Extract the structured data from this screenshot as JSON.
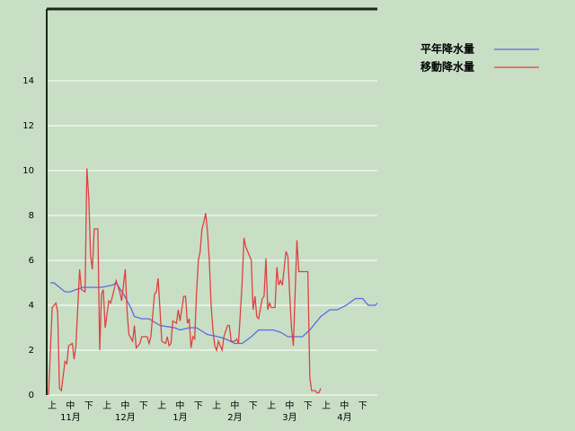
{
  "chart_data": {
    "type": "line",
    "xlim": [
      0,
      181
    ],
    "ylim": [
      0,
      17.2
    ],
    "yticks": [
      0,
      2,
      4,
      6,
      8,
      10,
      12,
      14
    ],
    "grid": true,
    "legend": "top-right",
    "xticks": [
      {
        "value": 3,
        "label": "上"
      },
      {
        "value": 13,
        "label": "中"
      },
      {
        "value": 23,
        "label": "下"
      },
      {
        "value": 33,
        "label": "上"
      },
      {
        "value": 43,
        "label": "中"
      },
      {
        "value": 53,
        "label": "下"
      },
      {
        "value": 63,
        "label": "上"
      },
      {
        "value": 73,
        "label": "中"
      },
      {
        "value": 83,
        "label": "下"
      },
      {
        "value": 93,
        "label": "上"
      },
      {
        "value": 103,
        "label": "中"
      },
      {
        "value": 113,
        "label": "下"
      },
      {
        "value": 123,
        "label": "上"
      },
      {
        "value": 133,
        "label": "中"
      },
      {
        "value": 143,
        "label": "下"
      },
      {
        "value": 153,
        "label": "上"
      },
      {
        "value": 163,
        "label": "中"
      },
      {
        "value": 173,
        "label": "下"
      }
    ],
    "month_labels": [
      {
        "value": 13,
        "label": "11月"
      },
      {
        "value": 43,
        "label": "12月"
      },
      {
        "value": 73,
        "label": "1月"
      },
      {
        "value": 103,
        "label": "2月"
      },
      {
        "value": 133,
        "label": "3月"
      },
      {
        "value": 163,
        "label": "4月"
      }
    ],
    "series": [
      {
        "name": "平年降水量",
        "color": "#5a6ae0",
        "x": [
          2,
          4,
          10,
          13,
          16,
          20,
          26,
          30,
          36,
          38,
          42,
          46,
          48,
          52,
          56,
          62,
          70,
          73,
          78,
          82,
          88,
          94,
          98,
          103,
          107,
          112,
          116,
          124,
          128,
          132,
          140,
          144,
          150,
          155,
          159,
          164,
          169,
          173,
          176,
          180,
          181
        ],
        "values": [
          5.0,
          5.0,
          4.6,
          4.6,
          4.7,
          4.8,
          4.8,
          4.8,
          4.9,
          5.0,
          4.5,
          3.9,
          3.5,
          3.4,
          3.4,
          3.1,
          3.0,
          2.9,
          3.0,
          3.0,
          2.7,
          2.6,
          2.5,
          2.3,
          2.3,
          2.6,
          2.9,
          2.9,
          2.8,
          2.6,
          2.6,
          2.9,
          3.5,
          3.8,
          3.8,
          4.0,
          4.3,
          4.3,
          4.0,
          4.0,
          4.1
        ]
      },
      {
        "name": "移動降水量",
        "color": "#e04040",
        "x": [
          1,
          3,
          5,
          6,
          7,
          8,
          10,
          11,
          12,
          14,
          15,
          16,
          18,
          19,
          21,
          22,
          23,
          24,
          25,
          26,
          28,
          29,
          30,
          31,
          32,
          34,
          35,
          36,
          38,
          40,
          41,
          43,
          44,
          45,
          47,
          48,
          49,
          51,
          52,
          55,
          56,
          57,
          59,
          60,
          61,
          62,
          63,
          65,
          66,
          67,
          68,
          69,
          71,
          72,
          73,
          75,
          76,
          77,
          78,
          79,
          80,
          81,
          82,
          83,
          84,
          85,
          86,
          87,
          88,
          89,
          90,
          91,
          92,
          93,
          94,
          95,
          96,
          97,
          99,
          100,
          101,
          103,
          104,
          105,
          107,
          108,
          109,
          111,
          112,
          113,
          114,
          115,
          116,
          118,
          119,
          120,
          121,
          122,
          123,
          125,
          126,
          127,
          128,
          129,
          131,
          132,
          133,
          134,
          135,
          137,
          138,
          143,
          144,
          145,
          147,
          148,
          149,
          150
        ],
        "values": [
          0,
          3.9,
          4.1,
          3.7,
          0.3,
          0.2,
          1.5,
          1.4,
          2.2,
          2.3,
          1.6,
          2.2,
          5.6,
          4.7,
          4.6,
          10.1,
          8.8,
          6.2,
          5.6,
          7.4,
          7.4,
          2.0,
          4.5,
          4.7,
          3.0,
          4.2,
          4.1,
          4.4,
          5.1,
          4.6,
          4.2,
          5.6,
          3.7,
          2.7,
          2.4,
          3.1,
          2.1,
          2.3,
          2.6,
          2.6,
          2.3,
          2.6,
          4.5,
          4.6,
          5.2,
          3.8,
          2.4,
          2.3,
          2.6,
          2.2,
          2.3,
          3.3,
          3.2,
          3.8,
          3.3,
          4.4,
          4.4,
          3.2,
          3.4,
          2.1,
          2.6,
          2.5,
          4.5,
          6.0,
          6.4,
          7.4,
          7.7,
          8.1,
          7.3,
          6.0,
          4.0,
          2.9,
          2.2,
          2.0,
          2.4,
          2.2,
          2.0,
          2.6,
          3.1,
          3.1,
          2.4,
          2.4,
          2.5,
          2.3,
          5.0,
          7.0,
          6.6,
          6.2,
          6.0,
          3.8,
          4.4,
          3.5,
          3.4,
          4.3,
          4.4,
          6.1,
          3.8,
          4.1,
          3.9,
          3.9,
          5.7,
          4.9,
          5.1,
          4.9,
          6.4,
          6.2,
          4.5,
          3.0,
          2.2,
          6.9,
          5.5,
          5.5,
          0.8,
          0.2,
          0.2,
          0.1,
          0.1,
          0.3
        ]
      }
    ]
  }
}
